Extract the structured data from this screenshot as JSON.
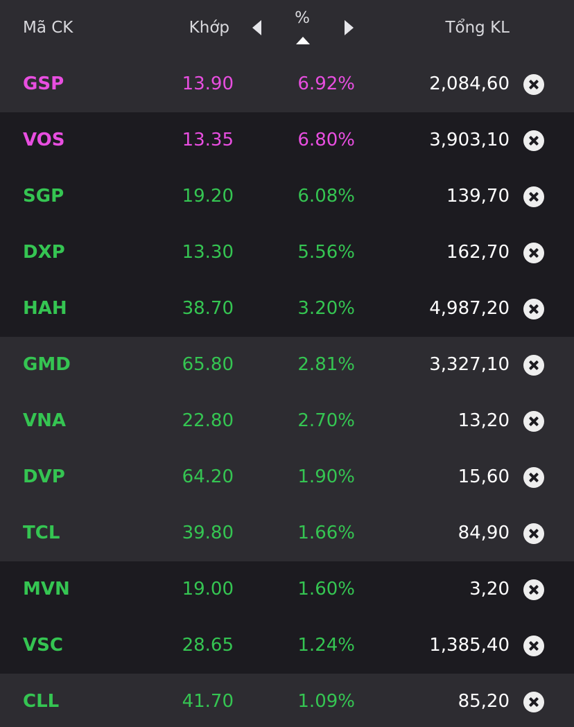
{
  "header": {
    "symbol_label": "Mã CK",
    "price_label": "Khớp",
    "percent_label": "%",
    "volume_label": "Tổng KL"
  },
  "colors": {
    "ceiling": "#e84ee0",
    "up": "#35c552",
    "volume": "#ffffff",
    "band_light": "#2d2c31",
    "band_dark": "#1c1b20"
  },
  "rows": [
    {
      "symbol": "GSP",
      "price": "13.90",
      "percent": "6.92%",
      "volume": "2,084,60",
      "status": "ceiling"
    },
    {
      "symbol": "VOS",
      "price": "13.35",
      "percent": "6.80%",
      "volume": "3,903,10",
      "status": "ceiling"
    },
    {
      "symbol": "SGP",
      "price": "19.20",
      "percent": "6.08%",
      "volume": "139,70",
      "status": "up"
    },
    {
      "symbol": "DXP",
      "price": "13.30",
      "percent": "5.56%",
      "volume": "162,70",
      "status": "up"
    },
    {
      "symbol": "HAH",
      "price": "38.70",
      "percent": "3.20%",
      "volume": "4,987,20",
      "status": "up"
    },
    {
      "symbol": "GMD",
      "price": "65.80",
      "percent": "2.81%",
      "volume": "3,327,10",
      "status": "up"
    },
    {
      "symbol": "VNA",
      "price": "22.80",
      "percent": "2.70%",
      "volume": "13,20",
      "status": "up"
    },
    {
      "symbol": "DVP",
      "price": "64.20",
      "percent": "1.90%",
      "volume": "15,60",
      "status": "up"
    },
    {
      "symbol": "TCL",
      "price": "39.80",
      "percent": "1.66%",
      "volume": "84,90",
      "status": "up"
    },
    {
      "symbol": "MVN",
      "price": "19.00",
      "percent": "1.60%",
      "volume": "3,20",
      "status": "up"
    },
    {
      "symbol": "VSC",
      "price": "28.65",
      "percent": "1.24%",
      "volume": "1,385,40",
      "status": "up"
    },
    {
      "symbol": "CLL",
      "price": "41.70",
      "percent": "1.09%",
      "volume": "85,20",
      "status": "up"
    }
  ]
}
